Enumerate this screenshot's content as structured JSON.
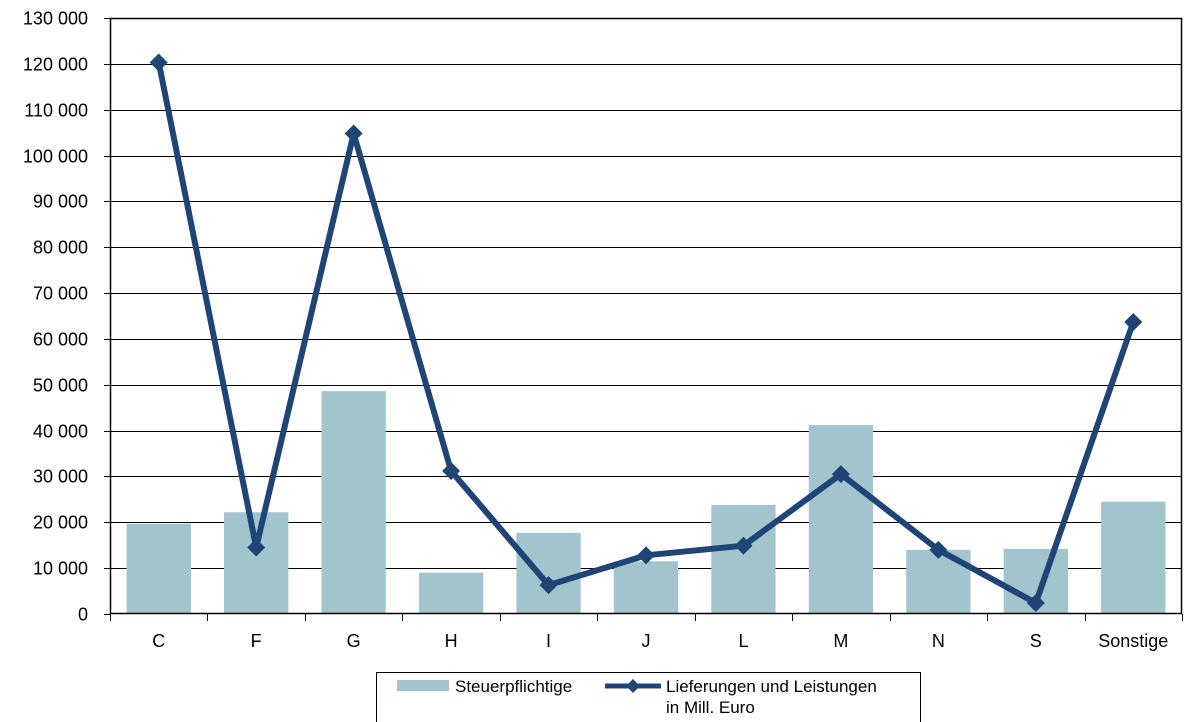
{
  "chart_data": {
    "type": "bar",
    "categories": [
      "C",
      "F",
      "G",
      "H",
      "I",
      "J",
      "L",
      "M",
      "N",
      "S",
      "Sonstige"
    ],
    "series": [
      {
        "name": "Steuerpflichtige",
        "type": "bar",
        "color": "#a2c4cc",
        "values": [
          19700,
          22200,
          48600,
          9000,
          17700,
          11500,
          23800,
          41200,
          14000,
          14200,
          24500
        ]
      },
      {
        "name": "Lieferungen und Leistungen in Mill. Euro",
        "name_lines": [
          "Lieferungen und Leistungen",
          "in Mill. Euro"
        ],
        "type": "line",
        "marker": "diamond",
        "color": "#1f4576",
        "values": [
          120300,
          14500,
          104800,
          31200,
          6300,
          12800,
          14900,
          30500,
          14000,
          2400,
          63700
        ]
      }
    ],
    "y_ticks": [
      "0",
      "10 000",
      "20 000",
      "30 000",
      "40 000",
      "50 000",
      "60 000",
      "70 000",
      "80 000",
      "90 000",
      "100 000",
      "110 000",
      "120 000",
      "130 000"
    ],
    "ylim": [
      0,
      130000
    ],
    "grid": true,
    "legend": "bottom-center"
  }
}
